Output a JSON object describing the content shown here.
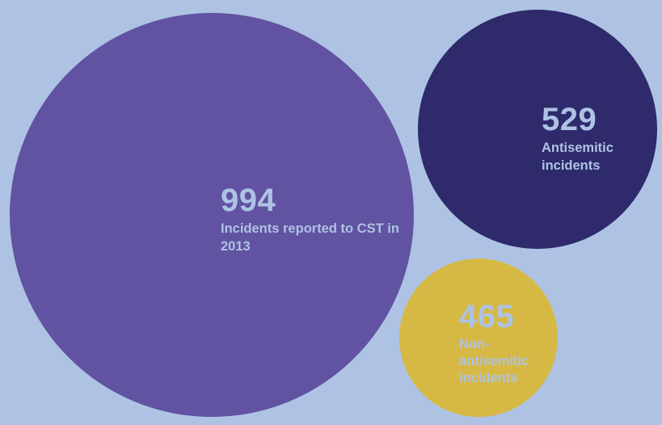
{
  "chart_data": {
    "type": "bubble",
    "title": "",
    "series": [
      {
        "value": 994,
        "label": "Incidents reported to CST in 2013",
        "color": "#6153a2",
        "text_color": "#aec3e3"
      },
      {
        "value": 529,
        "label": "Antisemitic incidents",
        "color": "#2e2a6c",
        "text_color": "#aec3e3"
      },
      {
        "value": 465,
        "label": "Non-antisemitic incidents",
        "color": "#d6b845",
        "text_color": "#aec3e3"
      }
    ]
  },
  "background_color": "#aec3e3"
}
